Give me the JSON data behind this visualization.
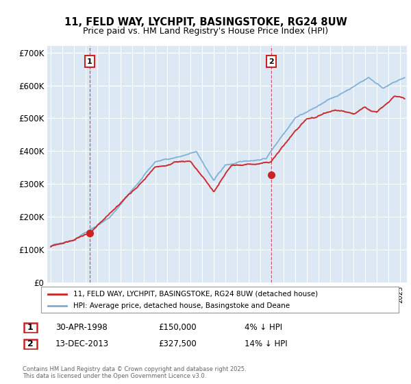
{
  "title": "11, FELD WAY, LYCHPIT, BASINGSTOKE, RG24 8UW",
  "subtitle": "Price paid vs. HM Land Registry's House Price Index (HPI)",
  "hpi_color": "#7aaed6",
  "price_color": "#cc2222",
  "plot_bg": "#dce9f5",
  "ylim": [
    0,
    720000
  ],
  "yticks": [
    0,
    100000,
    200000,
    300000,
    400000,
    500000,
    600000,
    700000
  ],
  "ytick_labels": [
    "£0",
    "£100K",
    "£200K",
    "£300K",
    "£400K",
    "£500K",
    "£600K",
    "£700K"
  ],
  "xmin": 1994.7,
  "xmax": 2025.6,
  "marker1_x": 1998.33,
  "marker1_y": 150000,
  "marker1_label": "1",
  "marker1_date": "30-APR-1998",
  "marker1_price": "£150,000",
  "marker1_hpi": "4% ↓ HPI",
  "marker2_x": 2013.95,
  "marker2_y": 327500,
  "marker2_label": "2",
  "marker2_date": "13-DEC-2013",
  "marker2_price": "£327,500",
  "marker2_hpi": "14% ↓ HPI",
  "legend_label_price": "11, FELD WAY, LYCHPIT, BASINGSTOKE, RG24 8UW (detached house)",
  "legend_label_hpi": "HPI: Average price, detached house, Basingstoke and Deane",
  "footer": "Contains HM Land Registry data © Crown copyright and database right 2025.\nThis data is licensed under the Open Government Licence v3.0."
}
